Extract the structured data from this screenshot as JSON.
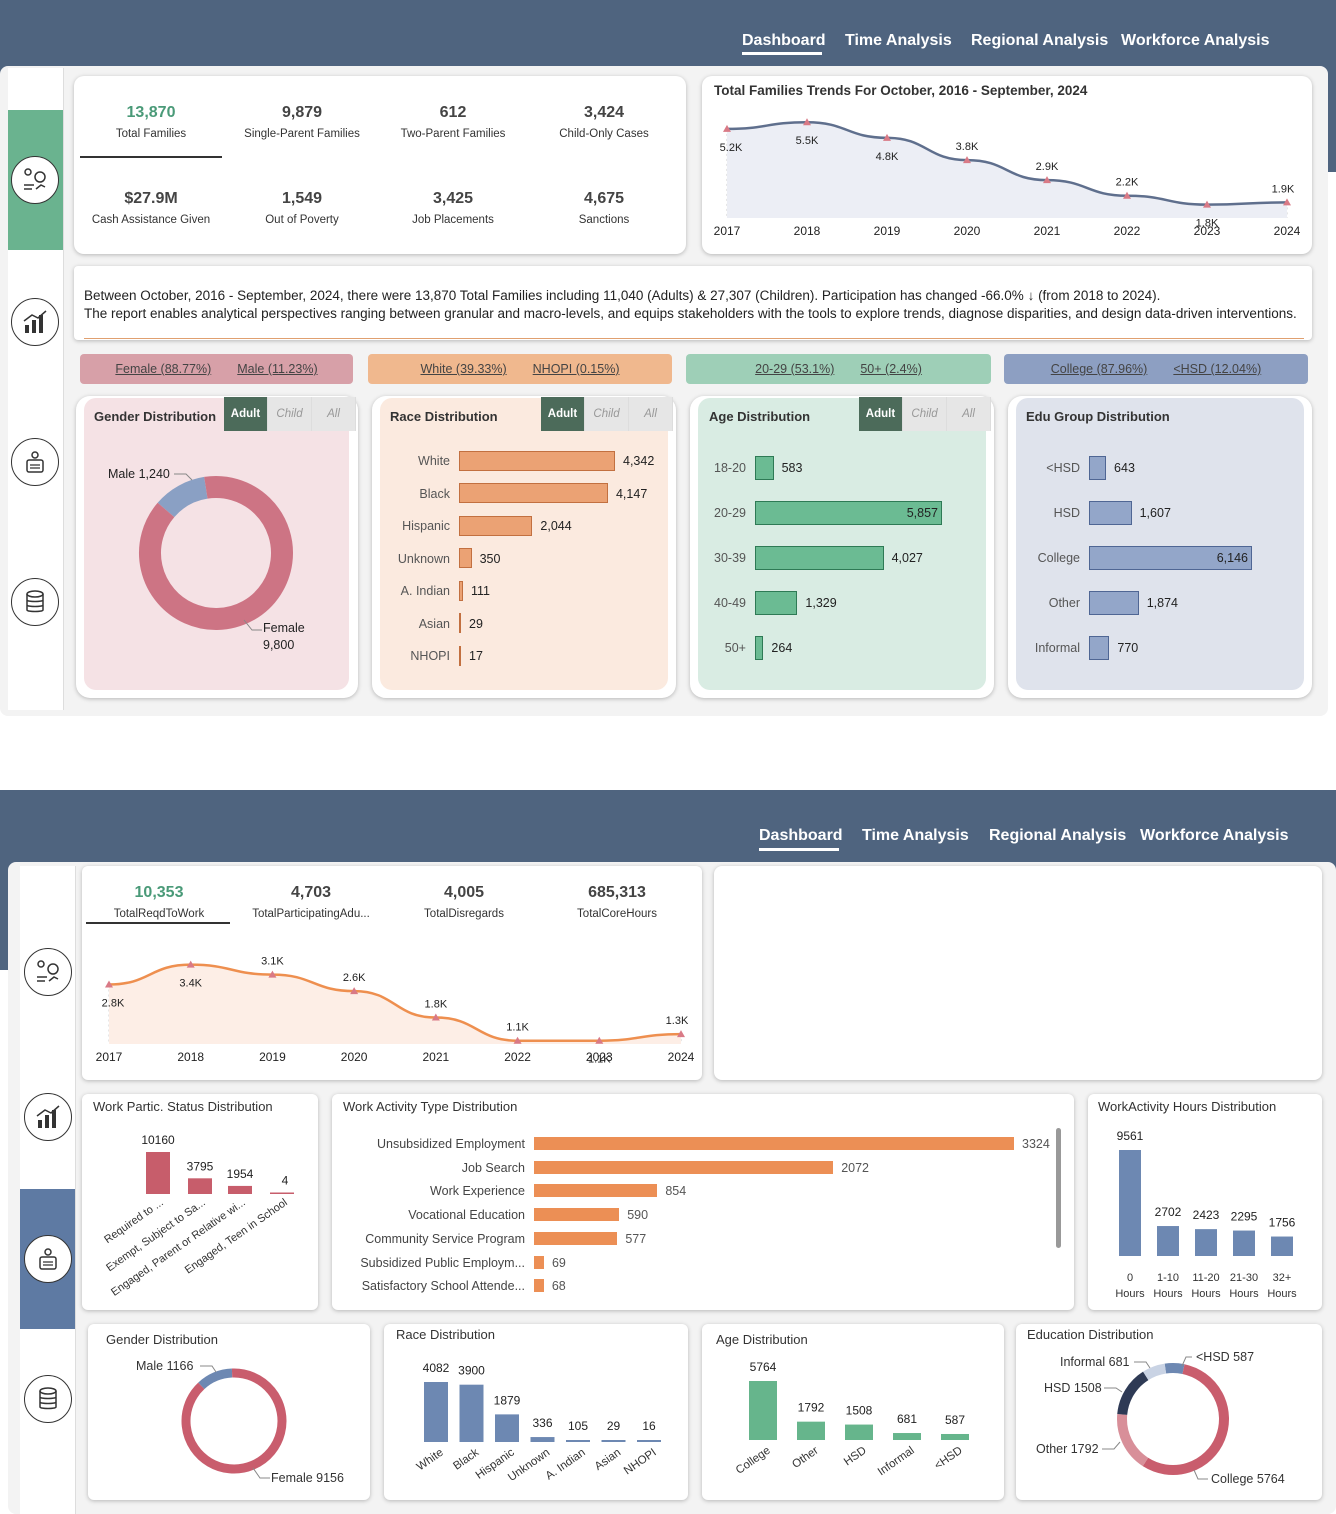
{
  "nav": {
    "dashboard": "Dashboard",
    "time": "Time Analysis",
    "regional": "Regional Analysis",
    "workforce": "Workforce Analysis"
  },
  "kpis": [
    {
      "value": "13,870",
      "label": "Total Families"
    },
    {
      "value": "9,879",
      "label": "Single-Parent Families"
    },
    {
      "value": "612",
      "label": "Two-Parent Families"
    },
    {
      "value": "3,424",
      "label": "Child-Only Cases"
    },
    {
      "value": "$27.9M",
      "label": "Cash Assistance Given"
    },
    {
      "value": "1,549",
      "label": "Out of Poverty"
    },
    {
      "value": "3,425",
      "label": "Job Placements"
    },
    {
      "value": "4,675",
      "label": "Sanctions"
    }
  ],
  "trend1": {
    "title": "Total Families Trends For October, 2016 - September, 2024",
    "years": [
      "2017",
      "2018",
      "2019",
      "2020",
      "2021",
      "2022",
      "2023",
      "2024"
    ],
    "values": [
      5.2,
      5.5,
      4.8,
      3.8,
      2.9,
      2.2,
      1.8,
      1.9
    ],
    "labels": [
      "5.2K",
      "5.5K",
      "4.8K",
      "3.8K",
      "2.9K",
      "2.2K",
      "1.8K",
      "1.9K"
    ]
  },
  "summary": {
    "line1": "Between October, 2016 - September, 2024, there were 13,870 Total Families including 11,040 (Adults) & 27,307 (Children). Participation has changed -66.0% ↓ (from 2018 to 2024).",
    "line2": "The report enables analytical perspectives ranging between granular and macro-levels, and equips stakeholders with the tools to explore trends, diagnose disparities, and design data-driven interventions."
  },
  "pills": [
    {
      "a": "Female (88.77%)",
      "b": "Male (11.23%)",
      "color": "#d7a0a8"
    },
    {
      "a": "White (39.33%)",
      "b": "NHOPI (0.15%)",
      "color": "#f0b88e"
    },
    {
      "a": "20-29 (53.1%)",
      "b": "50+ (2.4%)",
      "color": "#9ecfb7"
    },
    {
      "a": "College (87.96%)",
      "b": "<HSD (12.04%)",
      "color": "#8d9fc2"
    }
  ],
  "toggle": {
    "adult": "Adult",
    "child": "Child",
    "all": "All"
  },
  "gender1": {
    "title": "Gender Distribution",
    "male_label": "Male 1,240",
    "female_label": "Female",
    "female_value": "9,800",
    "male": 1240,
    "female": 9800
  },
  "race1": {
    "title": "Race Distribution",
    "items": [
      {
        "name": "White",
        "value": 4342,
        "label": "4,342"
      },
      {
        "name": "Black",
        "value": 4147,
        "label": "4,147"
      },
      {
        "name": "Hispanic",
        "value": 2044,
        "label": "2,044"
      },
      {
        "name": "Unknown",
        "value": 350,
        "label": "350"
      },
      {
        "name": "A. Indian",
        "value": 111,
        "label": "111"
      },
      {
        "name": "Asian",
        "value": 29,
        "label": "29"
      },
      {
        "name": "NHOPI",
        "value": 17,
        "label": "17"
      }
    ]
  },
  "age1": {
    "title": "Age Distribution",
    "items": [
      {
        "name": "18-20",
        "value": 583,
        "label": "583"
      },
      {
        "name": "20-29",
        "value": 5857,
        "label": "5,857"
      },
      {
        "name": "30-39",
        "value": 4027,
        "label": "4,027"
      },
      {
        "name": "40-49",
        "value": 1329,
        "label": "1,329"
      },
      {
        "name": "50+",
        "value": 264,
        "label": "264"
      }
    ]
  },
  "edu1": {
    "title": "Edu Group Distribution",
    "items": [
      {
        "name": "<HSD",
        "value": 643,
        "label": "643"
      },
      {
        "name": "HSD",
        "value": 1607,
        "label": "1,607"
      },
      {
        "name": "College",
        "value": 6146,
        "label": "6,146"
      },
      {
        "name": "Other",
        "value": 1874,
        "label": "1,874"
      },
      {
        "name": "Informal",
        "value": 770,
        "label": "770"
      }
    ]
  },
  "kpis2": [
    {
      "value": "10,353",
      "label": "TotalReqdToWork"
    },
    {
      "value": "4,703",
      "label": "TotalParticipatingAdu..."
    },
    {
      "value": "4,005",
      "label": "TotalDisregards"
    },
    {
      "value": "685,313",
      "label": "TotalCoreHours"
    }
  ],
  "trend2": {
    "years": [
      "2017",
      "2018",
      "2019",
      "2020",
      "2021",
      "2022",
      "2023",
      "2024"
    ],
    "values": [
      2.8,
      3.4,
      3.1,
      2.6,
      1.8,
      1.1,
      1.1,
      1.3
    ],
    "labels": [
      "2.8K",
      "3.4K",
      "3.1K",
      "2.6K",
      "1.8K",
      "1.1K",
      "1.1K",
      "1.3K"
    ]
  },
  "wps": {
    "title": "Work Partic. Status Distribution",
    "items": [
      {
        "name": "Required to ...",
        "value": 10160
      },
      {
        "name": "Exempt, Subject to Sa...",
        "value": 3795
      },
      {
        "name": "Engaged, Parent or Relative wi...",
        "value": 1954
      },
      {
        "name": "Engaged, Teen in School",
        "value": 4
      }
    ]
  },
  "wat": {
    "title": "Work Activity Type Distribution",
    "items": [
      {
        "name": "Unsubsidized Employment",
        "value": 3324
      },
      {
        "name": "Job Search",
        "value": 2072
      },
      {
        "name": "Work Experience",
        "value": 854
      },
      {
        "name": "Vocational Education",
        "value": 590
      },
      {
        "name": "Community Service Program",
        "value": 577
      },
      {
        "name": "Subsidized Public Employm...",
        "value": 69
      },
      {
        "name": "Satisfactory School Attende...",
        "value": 68
      }
    ]
  },
  "wah": {
    "title": "WorkActivity Hours Distribution",
    "items": [
      {
        "name": "0",
        "unit": "Hours",
        "value": 9561
      },
      {
        "name": "1-10",
        "unit": "Hours",
        "value": 2702
      },
      {
        "name": "11-20",
        "unit": "Hours",
        "value": 2423
      },
      {
        "name": "21-30",
        "unit": "Hours",
        "value": 2295
      },
      {
        "name": "32+",
        "unit": "Hours",
        "value": 1756
      }
    ]
  },
  "gender2": {
    "title": "Gender Distribution",
    "male_label": "Male 1166",
    "female_label": "Female 9156",
    "male": 1166,
    "female": 9156
  },
  "race2": {
    "title": "Race Distribution",
    "items": [
      {
        "name": "White",
        "value": 4082
      },
      {
        "name": "Black",
        "value": 3900
      },
      {
        "name": "Hispanic",
        "value": 1879
      },
      {
        "name": "Unknown",
        "value": 336
      },
      {
        "name": "A. Indian",
        "value": 105
      },
      {
        "name": "Asian",
        "value": 29
      },
      {
        "name": "NHOPI",
        "value": 16
      }
    ]
  },
  "age2": {
    "title": "Age Distribution",
    "items": [
      {
        "name": "College",
        "value": 5764
      },
      {
        "name": "Other",
        "value": 1792
      },
      {
        "name": "HSD",
        "value": 1508
      },
      {
        "name": "Informal",
        "value": 681
      },
      {
        "name": "<HSD",
        "value": 587
      }
    ]
  },
  "edu2": {
    "title": "Education Distribution",
    "labels": {
      "informal": "Informal 681",
      "hsd": "HSD 1508",
      "other": "Other 1792",
      "lhsd": "<HSD 587",
      "college": "College 5764"
    },
    "values": {
      "college": 5764,
      "other": 1792,
      "hsd": 1508,
      "informal": 681,
      "lhsd": 587
    }
  }
}
